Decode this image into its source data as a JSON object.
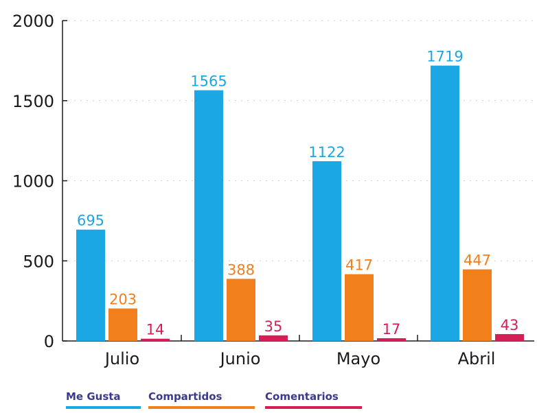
{
  "chart_data": {
    "type": "bar",
    "categories": [
      "Julio",
      "Junio",
      "Mayo",
      "Abril"
    ],
    "series": [
      {
        "name": "Me Gusta",
        "color": "#1aa7e3",
        "values": [
          695,
          1565,
          1122,
          1719
        ]
      },
      {
        "name": "Compartidos",
        "color": "#f07f1c",
        "values": [
          203,
          388,
          417,
          447
        ]
      },
      {
        "name": "Comentarios",
        "color": "#d31e56",
        "values": [
          14,
          35,
          17,
          43
        ]
      }
    ],
    "y_ticks": [
      0,
      500,
      1000,
      1500,
      2000
    ],
    "ylim": [
      0,
      2000
    ],
    "grid": "dotted horizontal",
    "legend_position": "bottom-left",
    "title": "",
    "xlabel": "",
    "ylabel": ""
  }
}
